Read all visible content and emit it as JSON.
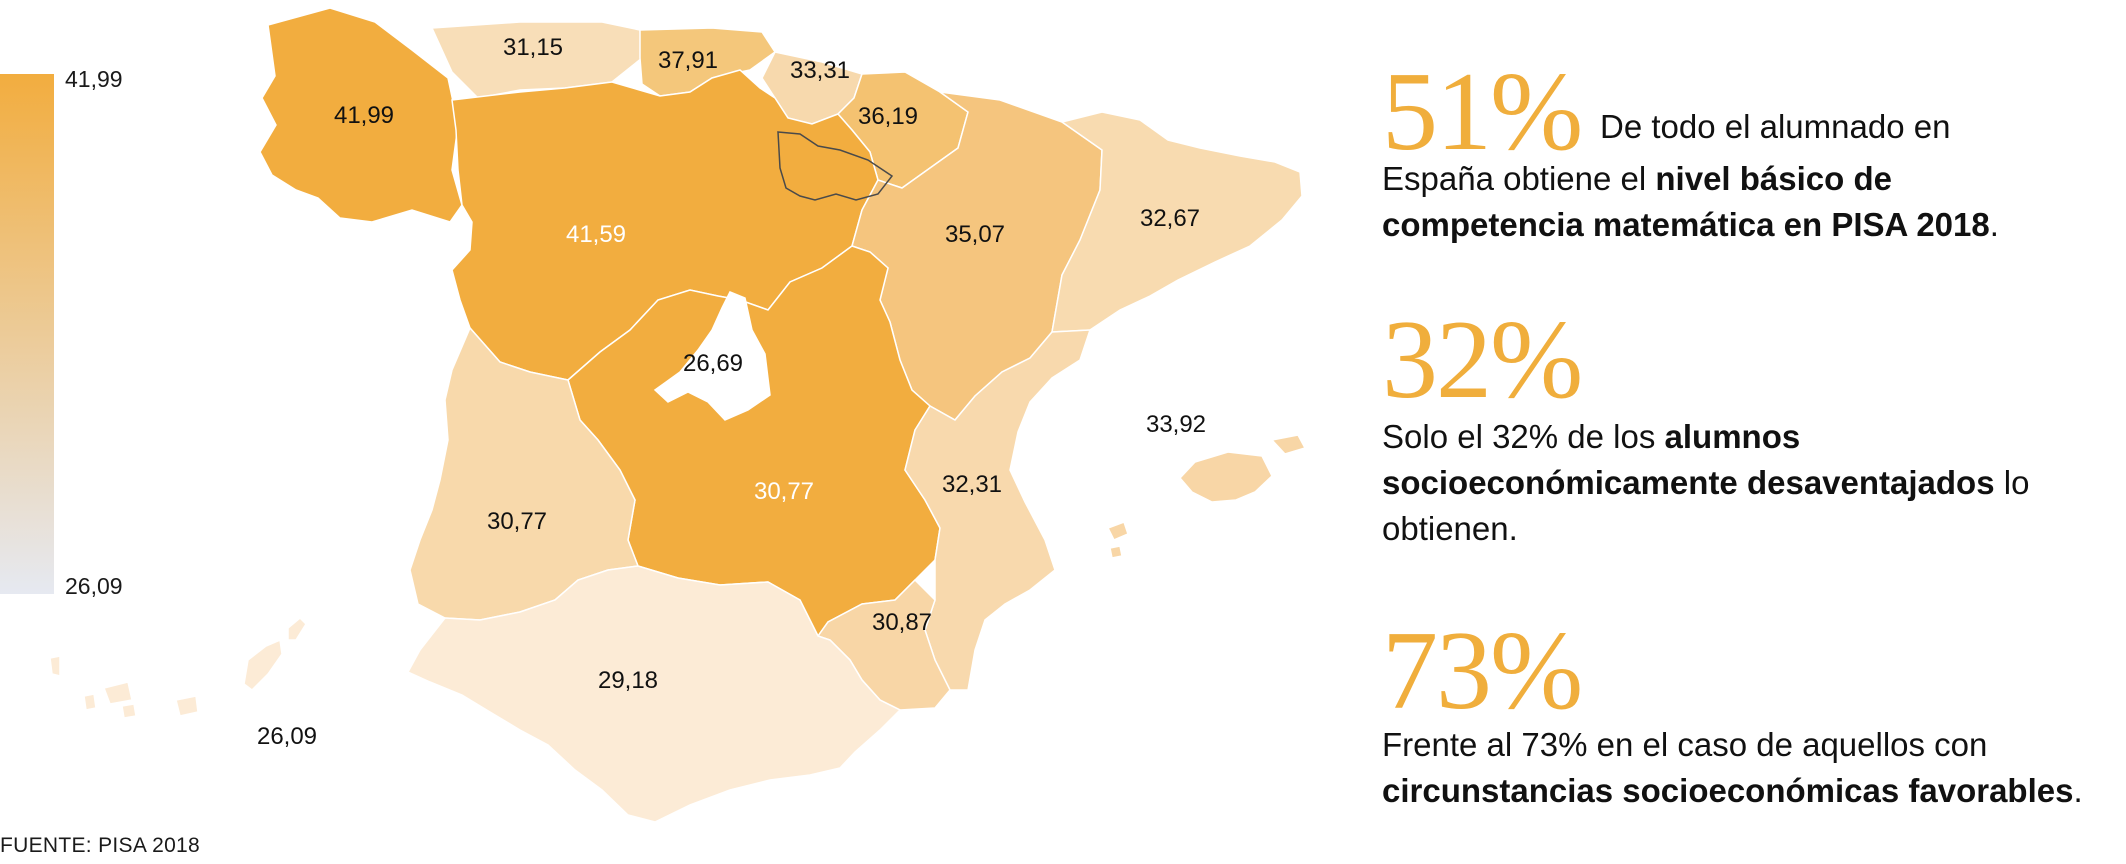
{
  "legend": {
    "max": "41,99",
    "min": "26,09",
    "gradient_top": "#f2ad3f",
    "gradient_bottom": "#e6e9f1"
  },
  "regions": [
    {
      "name": "galicia",
      "value": "41,99",
      "color": "#f2ad3f",
      "label_color": "#111111"
    },
    {
      "name": "asturias",
      "value": "31,15",
      "color": "#f8deb8",
      "label_color": "#111111"
    },
    {
      "name": "cantabria",
      "value": "37,91",
      "color": "#f4c77b",
      "label_color": "#111111"
    },
    {
      "name": "pais-vasco",
      "value": "33,31",
      "color": "#f7d9ad",
      "label_color": "#111111"
    },
    {
      "name": "navarra",
      "value": "36,19",
      "color": "#f4c271",
      "label_color": "#111111"
    },
    {
      "name": "castilla-y-leon",
      "value": "41,59",
      "color": "#f2ad3f",
      "label_color": "#ffffff"
    },
    {
      "name": "aragon",
      "value": "35,07",
      "color": "#f5c57e",
      "label_color": "#111111"
    },
    {
      "name": "cataluna",
      "value": "32,67",
      "color": "#f8dbb0",
      "label_color": "#111111"
    },
    {
      "name": "madrid",
      "value": "26,69",
      "color": "#ffffff",
      "label_color": "#111111"
    },
    {
      "name": "castilla-la-mancha",
      "value": "30,77",
      "color": "#f2ad3f",
      "label_color": "#ffffff"
    },
    {
      "name": "extremadura",
      "value": "30,77",
      "color": "#f8d9ab",
      "label_color": "#111111"
    },
    {
      "name": "valencia",
      "value": "32,31",
      "color": "#f8d9ad",
      "label_color": "#111111"
    },
    {
      "name": "baleares",
      "value": "33,92",
      "color": "#f8d6a6",
      "label_color": "#111111"
    },
    {
      "name": "murcia",
      "value": "30,87",
      "color": "#f8d6a6",
      "label_color": "#111111"
    },
    {
      "name": "andalucia",
      "value": "29,18",
      "color": "#fcebd6",
      "label_color": "#111111"
    },
    {
      "name": "canarias",
      "value": "26,09",
      "color": "#fcebd6",
      "label_color": "#111111"
    }
  ],
  "source": "FUENTE: PISA 2018",
  "stats": [
    {
      "pct": "51%",
      "text": [
        {
          "t": "De todo el alumnado en",
          "b": false
        },
        {
          "t": "España obtiene el ",
          "b": false
        },
        {
          "t": "nivel básico de competencia matemática en PISA 2018",
          "b": true
        },
        {
          "t": ".",
          "b": false
        }
      ]
    },
    {
      "pct": "32%",
      "text": [
        {
          "t": "Solo el 32% de los ",
          "b": false
        },
        {
          "t": "alumnos socioeconómicamente desaventajados",
          "b": true
        },
        {
          "t": " lo obtienen.",
          "b": false
        }
      ]
    },
    {
      "pct": "73%",
      "text": [
        {
          "t": "Frente al 73% en el caso de aquellos con ",
          "b": false
        },
        {
          "t": "circunstancias socioeconómicas favorables",
          "b": true
        },
        {
          "t": ".",
          "b": false
        }
      ]
    }
  ]
}
